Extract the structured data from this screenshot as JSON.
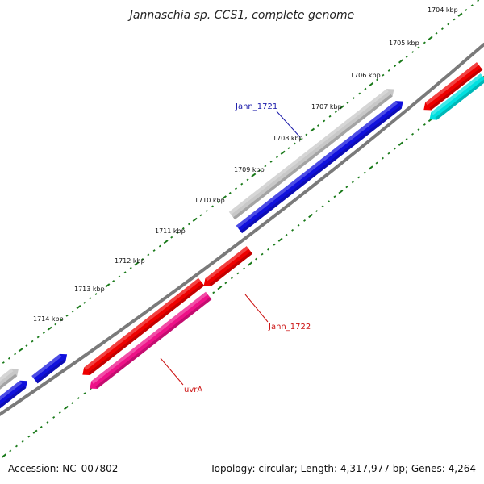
{
  "title": "Jannaschia sp. CCS1, complete genome",
  "footer": {
    "accession": "Accession: NC_007802",
    "topology": "Topology: circular; Length: 4,317,977 bp; Genes: 4,264"
  },
  "colors": {
    "backbone": "#8a8a8a",
    "tick": "#1a7a1a",
    "gene_label_blue": "#1a1aaa",
    "gene_label_red": "#cc1111"
  },
  "scale_labels": [
    "1704 kbp",
    "1705 kbp",
    "1706 kbp",
    "1707 kbp",
    "1708 kbp",
    "1709 kbp",
    "1710 kbp",
    "1711 kbp",
    "1712 kbp",
    "1713 kbp",
    "1714 kbp"
  ],
  "genes": [
    {
      "id": "g-grey-top",
      "color": "#c8c8c8",
      "strand": "+"
    },
    {
      "id": "g-blue-top",
      "color": "#1010dd",
      "strand": "+"
    },
    {
      "id": "g-red-right",
      "color": "#ee0000",
      "strand": "-"
    },
    {
      "id": "g-cyan-right",
      "color": "#00e0e0",
      "strand": "-"
    },
    {
      "id": "g-red-mid",
      "color": "#ee0000",
      "strand": "-"
    },
    {
      "id": "g-red-long",
      "color": "#ee0000",
      "strand": "-"
    },
    {
      "id": "g-pink-long",
      "color": "#ee1188",
      "strand": "-"
    },
    {
      "id": "g-blue-left-a",
      "color": "#1010dd",
      "strand": "+"
    },
    {
      "id": "g-blue-left-b",
      "color": "#1010dd",
      "strand": "+"
    },
    {
      "id": "g-grey-left",
      "color": "#c8c8c8",
      "strand": "+"
    }
  ],
  "gene_labels": [
    {
      "text": "Jann_1721",
      "color_key": "gene_label_blue"
    },
    {
      "text": "Jann_1722",
      "color_key": "gene_label_red"
    },
    {
      "text": "uvrA",
      "color_key": "gene_label_red"
    }
  ]
}
